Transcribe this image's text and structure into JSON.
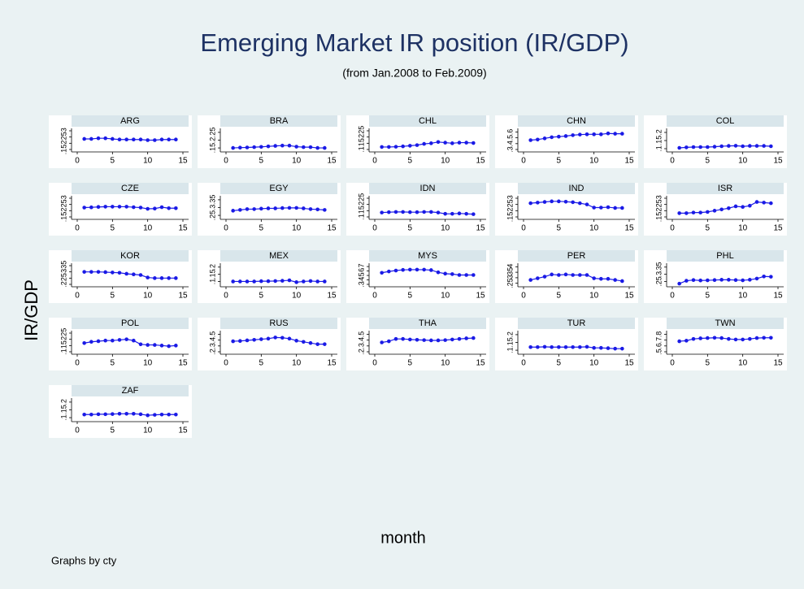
{
  "chart_data": {
    "type": "line",
    "title": "Emerging Market IR position (IR/GDP)",
    "subtitle": "(from Jan.2008 to Feb.2009)",
    "x_label": "month",
    "y_label": "IR/GDP",
    "note": "Graphs by cty",
    "color": "#1a1ae6",
    "x": [
      1,
      2,
      3,
      4,
      5,
      6,
      7,
      8,
      9,
      10,
      11,
      12,
      13,
      14
    ],
    "xlim": [
      0,
      15
    ],
    "xticks": [
      0,
      5,
      10,
      15
    ],
    "panels": [
      {
        "name": "ARG",
        "ylim": [
          0.15,
          0.3
        ],
        "yticks": [
          {
            "value": 0.15,
            "label": ".15"
          },
          {
            "value": 0.2,
            "label": ".2"
          },
          {
            "value": 0.25,
            "label": ".25"
          },
          {
            "value": 0.3,
            "label": ".3"
          }
        ],
        "values": [
          0.235,
          0.235,
          0.24,
          0.24,
          0.235,
          0.23,
          0.23,
          0.23,
          0.23,
          0.225,
          0.225,
          0.23,
          0.23,
          0.23
        ]
      },
      {
        "name": "BRA",
        "ylim": [
          0.14,
          0.26
        ],
        "yticks": [
          {
            "value": 0.15,
            "label": ".15"
          },
          {
            "value": 0.2,
            "label": ".2"
          },
          {
            "value": 0.25,
            "label": ".25"
          }
        ],
        "values": [
          0.15,
          0.152,
          0.153,
          0.155,
          0.157,
          0.16,
          0.163,
          0.165,
          0.165,
          0.158,
          0.155,
          0.155,
          0.15,
          0.15
        ]
      },
      {
        "name": "CHL",
        "ylim": [
          0.1,
          0.25
        ],
        "yticks": [
          {
            "value": 0.1,
            "label": ".1"
          },
          {
            "value": 0.15,
            "label": ".15"
          },
          {
            "value": 0.2,
            "label": ".2"
          },
          {
            "value": 0.25,
            "label": ".25"
          }
        ],
        "values": [
          0.12,
          0.12,
          0.122,
          0.125,
          0.13,
          0.135,
          0.145,
          0.15,
          0.16,
          0.155,
          0.15,
          0.155,
          0.155,
          0.152
        ]
      },
      {
        "name": "CHN",
        "ylim": [
          0.3,
          0.62
        ],
        "yticks": [
          {
            "value": 0.3,
            "label": ".3"
          },
          {
            "value": 0.4,
            "label": ".4"
          },
          {
            "value": 0.5,
            "label": ".5"
          },
          {
            "value": 0.6,
            "label": ".6"
          }
        ],
        "values": [
          0.46,
          0.47,
          0.49,
          0.51,
          0.52,
          0.53,
          0.545,
          0.555,
          0.56,
          0.56,
          0.56,
          0.575,
          0.57,
          0.57
        ]
      },
      {
        "name": "COL",
        "ylim": [
          0.095,
          0.21
        ],
        "yticks": [
          {
            "value": 0.1,
            "label": ".1"
          },
          {
            "value": 0.15,
            "label": ".15"
          },
          {
            "value": 0.2,
            "label": ".2"
          }
        ],
        "values": [
          0.105,
          0.108,
          0.11,
          0.11,
          0.11,
          0.112,
          0.115,
          0.117,
          0.118,
          0.115,
          0.117,
          0.117,
          0.117,
          0.115
        ]
      },
      {
        "name": "CZE",
        "ylim": [
          0.15,
          0.3
        ],
        "yticks": [
          {
            "value": 0.15,
            "label": ".15"
          },
          {
            "value": 0.2,
            "label": ".2"
          },
          {
            "value": 0.25,
            "label": ".25"
          },
          {
            "value": 0.3,
            "label": ".3"
          }
        ],
        "values": [
          0.225,
          0.227,
          0.23,
          0.232,
          0.232,
          0.232,
          0.232,
          0.228,
          0.225,
          0.215,
          0.217,
          0.228,
          0.22,
          0.22
        ]
      },
      {
        "name": "EGY",
        "ylim": [
          0.24,
          0.36
        ],
        "yticks": [
          {
            "value": 0.25,
            "label": ".25"
          },
          {
            "value": 0.3,
            "label": ".3"
          },
          {
            "value": 0.35,
            "label": ".35"
          }
        ],
        "values": [
          0.28,
          0.285,
          0.29,
          0.29,
          0.293,
          0.295,
          0.295,
          0.297,
          0.298,
          0.298,
          0.295,
          0.29,
          0.288,
          0.285
        ]
      },
      {
        "name": "IDN",
        "ylim": [
          0.1,
          0.25
        ],
        "yticks": [
          {
            "value": 0.1,
            "label": ".1"
          },
          {
            "value": 0.15,
            "label": ".15"
          },
          {
            "value": 0.2,
            "label": ".2"
          },
          {
            "value": 0.25,
            "label": ".25"
          }
        ],
        "values": [
          0.135,
          0.138,
          0.14,
          0.14,
          0.138,
          0.138,
          0.14,
          0.14,
          0.135,
          0.125,
          0.125,
          0.128,
          0.125,
          0.122
        ]
      },
      {
        "name": "IND",
        "ylim": [
          0.15,
          0.3
        ],
        "yticks": [
          {
            "value": 0.15,
            "label": ".15"
          },
          {
            "value": 0.2,
            "label": ".2"
          },
          {
            "value": 0.25,
            "label": ".25"
          },
          {
            "value": 0.3,
            "label": ".3"
          }
        ],
        "values": [
          0.26,
          0.265,
          0.27,
          0.275,
          0.275,
          0.272,
          0.268,
          0.26,
          0.25,
          0.225,
          0.225,
          0.228,
          0.222,
          0.222
        ]
      },
      {
        "name": "ISR",
        "ylim": [
          0.15,
          0.3
        ],
        "yticks": [
          {
            "value": 0.15,
            "label": ".15"
          },
          {
            "value": 0.2,
            "label": ".2"
          },
          {
            "value": 0.25,
            "label": ".25"
          },
          {
            "value": 0.3,
            "label": ".3"
          }
        ],
        "values": [
          0.18,
          0.18,
          0.185,
          0.185,
          0.19,
          0.2,
          0.21,
          0.22,
          0.235,
          0.23,
          0.24,
          0.27,
          0.265,
          0.26
        ]
      },
      {
        "name": "KOR",
        "ylim": [
          0.2,
          0.35
        ],
        "yticks": [
          {
            "value": 0.2,
            "label": ".2"
          },
          {
            "value": 0.25,
            "label": ".25"
          },
          {
            "value": 0.3,
            "label": ".3"
          },
          {
            "value": 0.35,
            "label": ".35"
          }
        ],
        "values": [
          0.3,
          0.3,
          0.3,
          0.298,
          0.295,
          0.293,
          0.285,
          0.28,
          0.275,
          0.255,
          0.25,
          0.25,
          0.25,
          0.25
        ]
      },
      {
        "name": "MEX",
        "ylim": [
          0.08,
          0.21
        ],
        "yticks": [
          {
            "value": 0.1,
            "label": ".1"
          },
          {
            "value": 0.15,
            "label": ".15"
          },
          {
            "value": 0.2,
            "label": ".2"
          }
        ],
        "values": [
          0.1,
          0.1,
          0.1,
          0.1,
          0.102,
          0.102,
          0.103,
          0.105,
          0.108,
          0.095,
          0.1,
          0.103,
          0.1,
          0.1
        ]
      },
      {
        "name": "MYS",
        "ylim": [
          0.3,
          0.72
        ],
        "yticks": [
          {
            "value": 0.3,
            "label": ".3"
          },
          {
            "value": 0.4,
            "label": ".4"
          },
          {
            "value": 0.5,
            "label": ".5"
          },
          {
            "value": 0.6,
            "label": ".6"
          },
          {
            "value": 0.7,
            "label": ".7"
          }
        ],
        "values": [
          0.56,
          0.59,
          0.61,
          0.625,
          0.63,
          0.63,
          0.63,
          0.62,
          0.57,
          0.54,
          0.53,
          0.51,
          0.51,
          0.51
        ]
      },
      {
        "name": "PER",
        "ylim": [
          0.24,
          0.41
        ],
        "yticks": [
          {
            "value": 0.25,
            "label": ".25"
          },
          {
            "value": 0.3,
            "label": ".3"
          },
          {
            "value": 0.35,
            "label": ".35"
          },
          {
            "value": 0.4,
            "label": ".4"
          }
        ],
        "values": [
          0.28,
          0.295,
          0.31,
          0.33,
          0.325,
          0.33,
          0.325,
          0.325,
          0.325,
          0.295,
          0.29,
          0.29,
          0.28,
          0.27
        ]
      },
      {
        "name": "PHL",
        "ylim": [
          0.23,
          0.36
        ],
        "yticks": [
          {
            "value": 0.25,
            "label": ".25"
          },
          {
            "value": 0.3,
            "label": ".3"
          },
          {
            "value": 0.35,
            "label": ".35"
          }
        ],
        "values": [
          0.235,
          0.255,
          0.26,
          0.257,
          0.258,
          0.26,
          0.262,
          0.262,
          0.26,
          0.258,
          0.262,
          0.27,
          0.285,
          0.283
        ]
      },
      {
        "name": "POL",
        "ylim": [
          0.1,
          0.25
        ],
        "yticks": [
          {
            "value": 0.1,
            "label": ".1"
          },
          {
            "value": 0.15,
            "label": ".15"
          },
          {
            "value": 0.2,
            "label": ".2"
          },
          {
            "value": 0.25,
            "label": ".25"
          }
        ],
        "values": [
          0.17,
          0.18,
          0.185,
          0.19,
          0.19,
          0.195,
          0.2,
          0.19,
          0.16,
          0.155,
          0.155,
          0.15,
          0.145,
          0.15
        ]
      },
      {
        "name": "RUS",
        "ylim": [
          0.2,
          0.52
        ],
        "yticks": [
          {
            "value": 0.2,
            "label": ".2"
          },
          {
            "value": 0.3,
            "label": ".3"
          },
          {
            "value": 0.4,
            "label": ".4"
          },
          {
            "value": 0.5,
            "label": ".5"
          }
        ],
        "values": [
          0.38,
          0.385,
          0.395,
          0.405,
          0.415,
          0.425,
          0.445,
          0.44,
          0.425,
          0.39,
          0.37,
          0.35,
          0.33,
          0.33
        ]
      },
      {
        "name": "THA",
        "ylim": [
          0.2,
          0.52
        ],
        "yticks": [
          {
            "value": 0.2,
            "label": ".2"
          },
          {
            "value": 0.3,
            "label": ".3"
          },
          {
            "value": 0.4,
            "label": ".4"
          },
          {
            "value": 0.5,
            "label": ".5"
          }
        ],
        "values": [
          0.36,
          0.38,
          0.42,
          0.42,
          0.41,
          0.405,
          0.4,
          0.395,
          0.395,
          0.4,
          0.41,
          0.42,
          0.43,
          0.435
        ]
      },
      {
        "name": "TUR",
        "ylim": [
          0.09,
          0.21
        ],
        "yticks": [
          {
            "value": 0.1,
            "label": ".1"
          },
          {
            "value": 0.15,
            "label": ".15"
          },
          {
            "value": 0.2,
            "label": ".2"
          }
        ],
        "values": [
          0.12,
          0.12,
          0.122,
          0.12,
          0.12,
          0.12,
          0.12,
          0.12,
          0.122,
          0.115,
          0.115,
          0.113,
          0.11,
          0.11
        ]
      },
      {
        "name": "TWN",
        "ylim": [
          0.5,
          0.82
        ],
        "yticks": [
          {
            "value": 0.5,
            "label": ".5"
          },
          {
            "value": 0.6,
            "label": ".6"
          },
          {
            "value": 0.7,
            "label": ".7"
          },
          {
            "value": 0.8,
            "label": ".8"
          }
        ],
        "values": [
          0.68,
          0.69,
          0.72,
          0.73,
          0.735,
          0.74,
          0.735,
          0.72,
          0.71,
          0.71,
          0.72,
          0.735,
          0.74,
          0.74
        ]
      },
      {
        "name": "ZAF",
        "ylim": [
          0.09,
          0.21
        ],
        "yticks": [
          {
            "value": 0.1,
            "label": ".1"
          },
          {
            "value": 0.15,
            "label": ".15"
          },
          {
            "value": 0.2,
            "label": ".2"
          }
        ],
        "values": [
          0.12,
          0.12,
          0.122,
          0.122,
          0.123,
          0.125,
          0.125,
          0.125,
          0.122,
          0.115,
          0.118,
          0.12,
          0.12,
          0.12
        ]
      }
    ]
  }
}
